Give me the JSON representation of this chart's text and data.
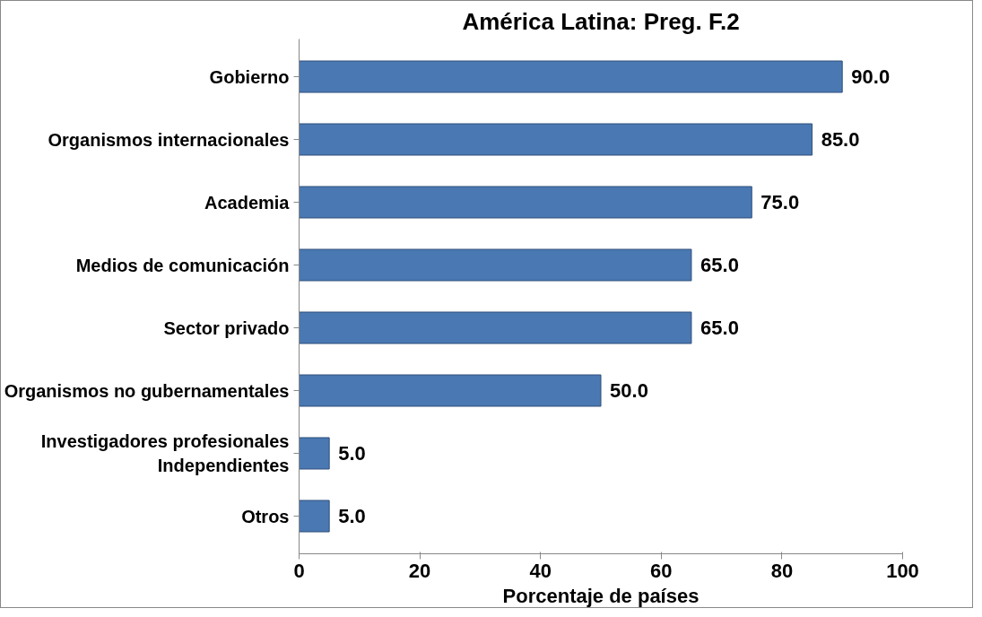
{
  "chart_data": {
    "type": "bar",
    "orientation": "horizontal",
    "title": "América Latina: Preg. F.2",
    "xlabel": "Porcentaje de países",
    "categories": [
      "Gobierno",
      "Organismos internacionales",
      "Academia",
      "Medios de comunicación",
      "Sector privado",
      "Organismos no gubernamentales",
      "Investigadores profesionales\nIndependientes",
      "Otros"
    ],
    "values": [
      90.0,
      85.0,
      75.0,
      65.0,
      65.0,
      50.0,
      5.0,
      5.0
    ],
    "value_labels": [
      "90.0",
      "85.0",
      "75.0",
      "65.0",
      "65.0",
      "50.0",
      "5.0",
      "5.0"
    ],
    "color": "#4a78b2",
    "xlim": [
      0,
      100
    ],
    "xticks": [
      0,
      20,
      40,
      60,
      80,
      100
    ],
    "grid": false
  }
}
